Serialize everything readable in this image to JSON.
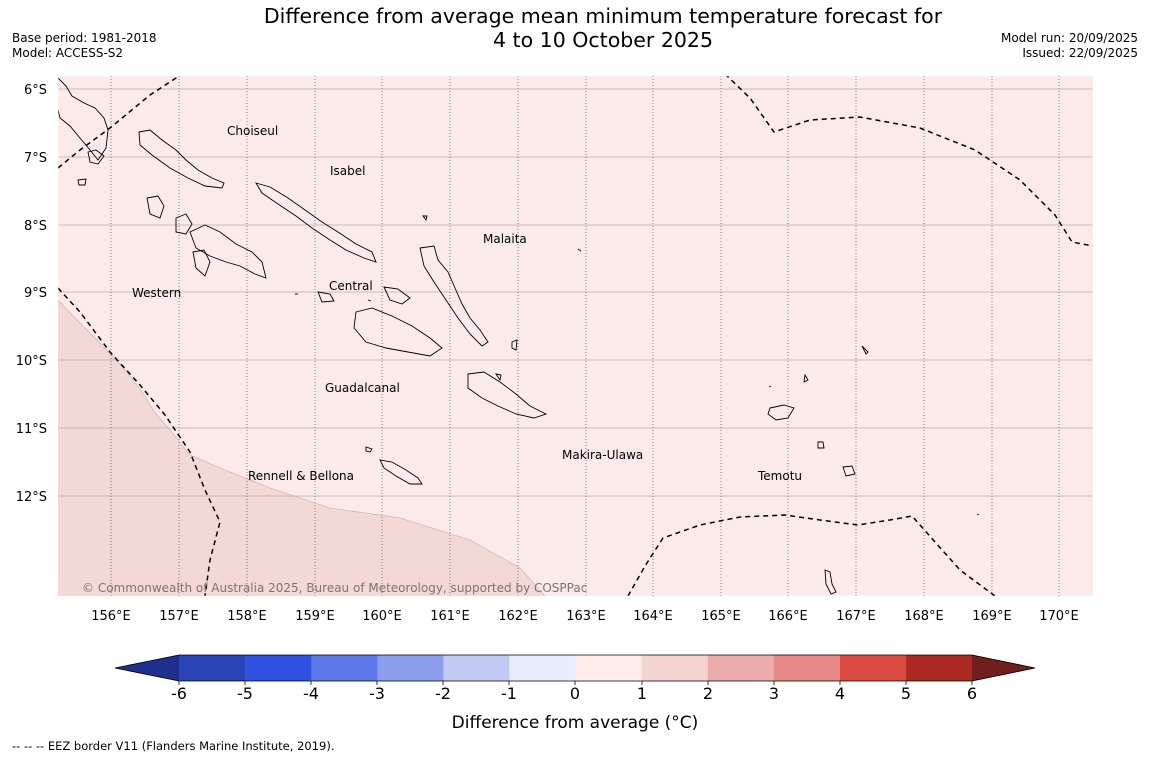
{
  "title": {
    "line1": "Difference from average mean minimum temperature forecast for",
    "line2": "4 to 10 October 2025"
  },
  "info_left": {
    "base_period": "Base period: 1981-2018",
    "model": "Model: ACCESS-S2"
  },
  "info_right": {
    "model_run": "Model run: 20/09/2025",
    "issued": "Issued: 22/09/2025"
  },
  "map": {
    "lat_labels": [
      "6°S",
      "7°S",
      "8°S",
      "9°S",
      "10°S",
      "11°S",
      "12°S"
    ],
    "lon_labels": [
      "156°E",
      "157°E",
      "158°E",
      "159°E",
      "160°E",
      "161°E",
      "162°E",
      "163°E",
      "164°E",
      "165°E",
      "166°E",
      "167°E",
      "168°E",
      "169°E",
      "170°E"
    ],
    "regions": {
      "choiseul": "Choiseul",
      "isabel": "Isabel",
      "malaita": "Malaita",
      "western": "Western",
      "central": "Central",
      "guadalcanal": "Guadalcanal",
      "makira_ulawa": "Makira-Ulawa",
      "temotu": "Temotu",
      "rennell_bellona": "Rennell & Bellona"
    },
    "copyright": "© Commonwealth of Australia 2025, Bureau of Meteorology, supported by COSPPac",
    "colors": {
      "anomaly_0_1": "#fbeae9",
      "anomaly_1_2": "#f4d8d5",
      "border": "#000000"
    }
  },
  "colorbar": {
    "ticks": [
      "-6",
      "-5",
      "-4",
      "-3",
      "-2",
      "-1",
      "0",
      "1",
      "2",
      "3",
      "4",
      "5",
      "6"
    ],
    "colors": [
      "#1f2f8e",
      "#2a43b6",
      "#2f50e0",
      "#5b78e6",
      "#8c9fee",
      "#c2cbf5",
      "#e9ecfd",
      "#fdecea",
      "#f3d4d1",
      "#eaadac",
      "#e48985",
      "#da4a40",
      "#ac2822",
      "#6f1e1c"
    ],
    "label": "Difference from average (°C)"
  },
  "footnote": "--  --  -- EEZ border V11 (Flanders Marine Institute, 2019)."
}
